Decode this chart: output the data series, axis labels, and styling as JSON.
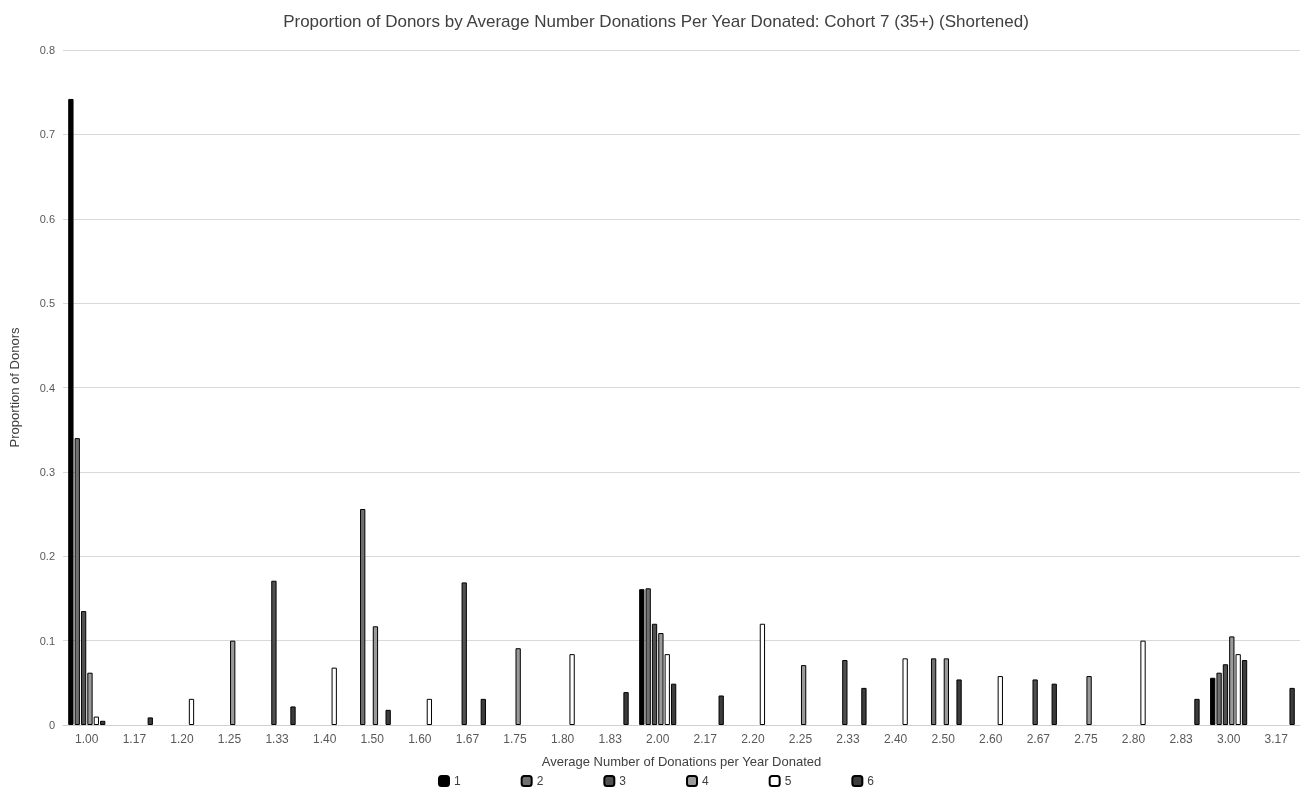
{
  "chart_data": {
    "type": "bar",
    "title": "Proportion of Donors by Average Number Donations Per Year Donated: Cohort 7 (35+) (Shortened)",
    "xlabel": "Average Number of Donations per Year Donated",
    "ylabel": "Proportion of Donors",
    "categories": [
      "1.00",
      "1.17",
      "1.20",
      "1.25",
      "1.33",
      "1.40",
      "1.50",
      "1.60",
      "1.67",
      "1.75",
      "1.80",
      "1.83",
      "2.00",
      "2.17",
      "2.20",
      "2.25",
      "2.33",
      "2.40",
      "2.50",
      "2.60",
      "2.67",
      "2.75",
      "2.80",
      "2.83",
      "3.00",
      "3.17"
    ],
    "series": [
      {
        "name": "1",
        "color": "#000000",
        "values": [
          0.742,
          null,
          null,
          null,
          null,
          null,
          null,
          null,
          null,
          null,
          null,
          null,
          0.161,
          null,
          null,
          null,
          null,
          null,
          null,
          null,
          null,
          null,
          null,
          null,
          0.056,
          null
        ]
      },
      {
        "name": "2",
        "color": "#707070",
        "values": [
          0.34,
          null,
          null,
          null,
          null,
          null,
          0.256,
          null,
          null,
          null,
          null,
          null,
          0.162,
          null,
          null,
          null,
          null,
          null,
          0.079,
          null,
          null,
          null,
          null,
          null,
          0.062,
          null
        ]
      },
      {
        "name": "3",
        "color": "#505050",
        "values": [
          0.135,
          null,
          null,
          null,
          0.171,
          null,
          null,
          null,
          0.169,
          null,
          null,
          null,
          0.12,
          null,
          null,
          null,
          0.077,
          null,
          null,
          null,
          0.054,
          null,
          null,
          null,
          0.072,
          null
        ]
      },
      {
        "name": "4",
        "color": "#9a9a9a",
        "values": [
          0.062,
          null,
          null,
          0.1,
          null,
          null,
          0.117,
          null,
          null,
          0.091,
          null,
          null,
          0.109,
          null,
          null,
          0.071,
          null,
          null,
          0.079,
          null,
          null,
          0.058,
          null,
          null,
          0.105,
          null
        ]
      },
      {
        "name": "5",
        "color": "#ffffff",
        "values": [
          0.01,
          null,
          0.031,
          null,
          null,
          0.068,
          null,
          0.031,
          null,
          null,
          0.084,
          null,
          0.084,
          null,
          0.12,
          null,
          null,
          0.079,
          null,
          0.058,
          null,
          null,
          0.1,
          null,
          0.084,
          null
        ]
      },
      {
        "name": "6",
        "color": "#3c3c3c",
        "values": [
          0.005,
          0.009,
          null,
          null,
          0.022,
          null,
          0.018,
          null,
          0.031,
          null,
          null,
          0.039,
          0.049,
          0.035,
          null,
          null,
          0.044,
          null,
          0.054,
          null,
          0.049,
          null,
          null,
          0.031,
          0.077,
          0.044
        ]
      }
    ],
    "ylim": [
      0,
      0.8
    ],
    "yticks": [
      0,
      0.1,
      0.2,
      0.3,
      0.4,
      0.5,
      0.6,
      0.7,
      0.8
    ],
    "grid": "y",
    "legend": "bottom"
  }
}
